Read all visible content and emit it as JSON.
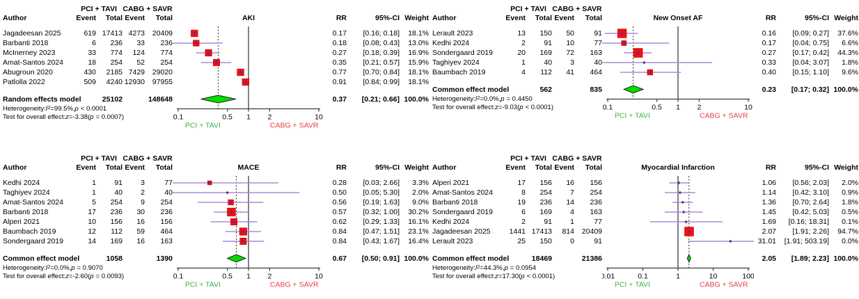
{
  "colors": {
    "square_red": "#ee1111",
    "square_border": "#bb0000",
    "ci_line_purple": "#a98cd5",
    "point_marker_purple": "#5c2d91",
    "diamond_green": "#00dd00",
    "diamond_border": "#222222",
    "axis_gray": "#3f3f3f",
    "ref_line": "#303030",
    "dashed_line": "#222222",
    "favors_left_green": "#3bb34a",
    "favors_right_red": "#e94040"
  },
  "labels": {
    "heterogeneity_prefix": "Heterogeneity: ",
    "i_symbol": "I",
    "sup2": "2",
    "equals": " = ",
    "comma_sep": ", ",
    "p_symbol": "p",
    "test_prefix": "Test for overall effect: ",
    "z_symbol": "z",
    "open_paren": " (",
    "close_paren": ")"
  },
  "chart_data": [
    {
      "type": "forest_plot",
      "title": "AKI",
      "group1_header": "PCI + TAVI",
      "group2_header": "CABG + SAVR",
      "col_headers": {
        "author": "Author",
        "event1": "Event",
        "total1": "Total",
        "event2": "Event",
        "total2": "Total",
        "rr": "RR",
        "ci": "95%-CI",
        "weight": "Weight"
      },
      "x_ticks": [
        0.1,
        0.5,
        1,
        2,
        10
      ],
      "x_tick_labels": [
        "0.1",
        "0.5",
        "1",
        "2",
        "10"
      ],
      "x_log10_range": [
        -1,
        1
      ],
      "favors_left_label": "PCI + TAVI",
      "favors_right_label": "CABG + SAVR",
      "studies": [
        {
          "author": "Jagadeesan 2025",
          "event1": "619",
          "total1": "17413",
          "event2": "4273",
          "total2": "20409",
          "rr": 0.17,
          "ci_low": 0.16,
          "ci_high": 0.18,
          "rr_text": "0.17",
          "ci_text": "[0.16; 0.18]",
          "weight_pct": 18.1,
          "weight_text": "18.1%"
        },
        {
          "author": "Barbanti 2018",
          "event1": "6",
          "total1": "236",
          "event2": "33",
          "total2": "236",
          "rr": 0.18,
          "ci_low": 0.08,
          "ci_high": 0.43,
          "rr_text": "0.18",
          "ci_text": "[0.08; 0.43]",
          "weight_pct": 13.0,
          "weight_text": "13.0%"
        },
        {
          "author": "McInerney 2023",
          "event1": "33",
          "total1": "774",
          "event2": "124",
          "total2": "774",
          "rr": 0.27,
          "ci_low": 0.18,
          "ci_high": 0.39,
          "rr_text": "0.27",
          "ci_text": "[0.18; 0.39]",
          "weight_pct": 16.9,
          "weight_text": "16.9%"
        },
        {
          "author": "Amat-Santos 2024",
          "event1": "18",
          "total1": "254",
          "event2": "52",
          "total2": "254",
          "rr": 0.35,
          "ci_low": 0.21,
          "ci_high": 0.57,
          "rr_text": "0.35",
          "ci_text": "[0.21; 0.57]",
          "weight_pct": 15.9,
          "weight_text": "15.9%"
        },
        {
          "author": "Abugroun 2020",
          "event1": "430",
          "total1": "2185",
          "event2": "7429",
          "total2": "29020",
          "rr": 0.77,
          "ci_low": 0.7,
          "ci_high": 0.84,
          "rr_text": "0.77",
          "ci_text": "[0.70; 0.84]",
          "weight_pct": 18.1,
          "weight_text": "18.1%"
        },
        {
          "author": "Patlolla 2022",
          "event1": "509",
          "total1": "4240",
          "event2": "12930",
          "total2": "97955",
          "rr": 0.91,
          "ci_low": 0.84,
          "ci_high": 0.99,
          "rr_text": "0.91",
          "ci_text": "[0.84; 0.99]",
          "weight_pct": 18.1,
          "weight_text": "18.1%"
        }
      ],
      "model": {
        "label": "Random effects model",
        "total1": "25102",
        "total2": "148648",
        "rr": 0.37,
        "ci_low": 0.21,
        "ci_high": 0.66,
        "rr_text": "0.37",
        "ci_text": "[0.21; 0.66]",
        "weight_text": "100.0%"
      },
      "heterogeneity": {
        "i2": "99.5%",
        "p": "< 0.0001"
      },
      "overall_test": {
        "z": "-3.38",
        "p": "= 0.0007"
      }
    },
    {
      "type": "forest_plot",
      "title": "New Onset AF",
      "group1_header": "PCI + TAVI",
      "group2_header": "CABG + SAVR",
      "col_headers": {
        "author": "Author",
        "event1": "Event",
        "total1": "Total",
        "event2": "Event",
        "total2": "Total",
        "rr": "RR",
        "ci": "95%-CI",
        "weight": "Weight"
      },
      "x_ticks": [
        0.1,
        0.5,
        1,
        2,
        10
      ],
      "x_tick_labels": [
        "0.1",
        "0.5",
        "1",
        "2",
        "10"
      ],
      "x_log10_range": [
        -1,
        1
      ],
      "favors_left_label": "PCI + TAVI",
      "favors_right_label": "CABG + SAVR",
      "studies": [
        {
          "author": "Lerault 2023",
          "event1": "13",
          "total1": "150",
          "event2": "50",
          "total2": "91",
          "rr": 0.16,
          "ci_low": 0.09,
          "ci_high": 0.27,
          "rr_text": "0.16",
          "ci_text": "[0.09; 0.27]",
          "weight_pct": 37.6,
          "weight_text": "37.6%"
        },
        {
          "author": "Kedhi 2024",
          "event1": "2",
          "total1": "91",
          "event2": "10",
          "total2": "77",
          "rr": 0.17,
          "ci_low": 0.04,
          "ci_high": 0.75,
          "rr_text": "0.17",
          "ci_text": "[0.04; 0.75]",
          "weight_pct": 6.6,
          "weight_text": "6.6%"
        },
        {
          "author": "Sondergaard 2019",
          "event1": "20",
          "total1": "169",
          "event2": "72",
          "total2": "163",
          "rr": 0.27,
          "ci_low": 0.17,
          "ci_high": 0.42,
          "rr_text": "0.27",
          "ci_text": "[0.17; 0.42]",
          "weight_pct": 44.3,
          "weight_text": "44.3%"
        },
        {
          "author": "Taghiyev 2024",
          "event1": "1",
          "total1": "40",
          "event2": "3",
          "total2": "40",
          "rr": 0.33,
          "ci_low": 0.04,
          "ci_high": 3.07,
          "rr_text": "0.33",
          "ci_text": "[0.04; 3.07]",
          "weight_pct": 1.8,
          "weight_text": "1.8%"
        },
        {
          "author": "Baumbach 2019",
          "event1": "4",
          "total1": "112",
          "event2": "41",
          "total2": "464",
          "rr": 0.4,
          "ci_low": 0.15,
          "ci_high": 1.1,
          "rr_text": "0.40",
          "ci_text": "[0.15; 1.10]",
          "weight_pct": 9.6,
          "weight_text": "9.6%"
        }
      ],
      "model": {
        "label": "Common effect model",
        "total1": "562",
        "total2": "835",
        "rr": 0.23,
        "ci_low": 0.17,
        "ci_high": 0.32,
        "rr_text": "0.23",
        "ci_text": "[0.17; 0.32]",
        "weight_text": "100.0%"
      },
      "heterogeneity": {
        "i2": "0.0%",
        "p": "= 0.4450"
      },
      "overall_test": {
        "z": "-9.03",
        "p": "< 0.0001"
      }
    },
    {
      "type": "forest_plot",
      "title": "MACE",
      "group1_header": "PCI + TAVI",
      "group2_header": "CABG + SAVR",
      "col_headers": {
        "author": "Author",
        "event1": "Event",
        "total1": "Total",
        "event2": "Event",
        "total2": "Total",
        "rr": "RR",
        "ci": "95%-CI",
        "weight": "Weight"
      },
      "x_ticks": [
        0.1,
        0.5,
        1,
        2,
        10
      ],
      "x_tick_labels": [
        "0.1",
        "0.5",
        "1",
        "2",
        "10"
      ],
      "x_log10_range": [
        -1,
        1
      ],
      "favors_left_label": "PCI + TAVI",
      "favors_right_label": "CABG + SAVR",
      "studies": [
        {
          "author": "Kedhi 2024",
          "event1": "1",
          "total1": "91",
          "event2": "3",
          "total2": "77",
          "rr": 0.28,
          "ci_low": 0.03,
          "ci_high": 2.66,
          "rr_text": "0.28",
          "ci_text": "[0.03; 2.66]",
          "weight_pct": 3.3,
          "weight_text": "3.3%"
        },
        {
          "author": "Taghiyev 2024",
          "event1": "1",
          "total1": "40",
          "event2": "2",
          "total2": "40",
          "rr": 0.5,
          "ci_low": 0.05,
          "ci_high": 5.3,
          "rr_text": "0.50",
          "ci_text": "[0.05; 5.30]",
          "weight_pct": 2.0,
          "weight_text": "2.0%"
        },
        {
          "author": "Amat-Santos 2024",
          "event1": "5",
          "total1": "254",
          "event2": "9",
          "total2": "254",
          "rr": 0.56,
          "ci_low": 0.19,
          "ci_high": 1.63,
          "rr_text": "0.56",
          "ci_text": "[0.19; 1.63]",
          "weight_pct": 9.0,
          "weight_text": "9.0%"
        },
        {
          "author": "Barbanti 2018",
          "event1": "17",
          "total1": "236",
          "event2": "30",
          "total2": "236",
          "rr": 0.57,
          "ci_low": 0.32,
          "ci_high": 1.0,
          "rr_text": "0.57",
          "ci_text": "[0.32; 1.00]",
          "weight_pct": 30.2,
          "weight_text": "30.2%"
        },
        {
          "author": "Alperi 2021",
          "event1": "10",
          "total1": "156",
          "event2": "16",
          "total2": "156",
          "rr": 0.62,
          "ci_low": 0.29,
          "ci_high": 1.33,
          "rr_text": "0.62",
          "ci_text": "[0.29; 1.33]",
          "weight_pct": 16.1,
          "weight_text": "16.1%"
        },
        {
          "author": "Baumbach 2019",
          "event1": "12",
          "total1": "112",
          "event2": "59",
          "total2": "464",
          "rr": 0.84,
          "ci_low": 0.47,
          "ci_high": 1.51,
          "rr_text": "0.84",
          "ci_text": "[0.47; 1.51]",
          "weight_pct": 23.1,
          "weight_text": "23.1%"
        },
        {
          "author": "Sondergaard 2019",
          "event1": "14",
          "total1": "169",
          "event2": "16",
          "total2": "163",
          "rr": 0.84,
          "ci_low": 0.43,
          "ci_high": 1.67,
          "rr_text": "0.84",
          "ci_text": "[0.43; 1.67]",
          "weight_pct": 16.4,
          "weight_text": "16.4%"
        }
      ],
      "model": {
        "label": "Common effect model",
        "total1": "1058",
        "total2": "1390",
        "rr": 0.67,
        "ci_low": 0.5,
        "ci_high": 0.91,
        "rr_text": "0.67",
        "ci_text": "[0.50; 0.91]",
        "weight_text": "100.0%"
      },
      "heterogeneity": {
        "i2": "0.0%",
        "p": "= 0.9070"
      },
      "overall_test": {
        "z": "-2.60",
        "p": "= 0.0093"
      }
    },
    {
      "type": "forest_plot",
      "title": "Myocardial Infarction",
      "group1_header": "PCI + TAVI",
      "group2_header": "CABG + SAVR",
      "col_headers": {
        "author": "Author",
        "event1": "Event",
        "total1": "Total",
        "event2": "Event",
        "total2": "Total",
        "rr": "RR",
        "ci": "95%-CI",
        "weight": "Weight"
      },
      "x_ticks": [
        0.01,
        0.1,
        1,
        10,
        100
      ],
      "x_tick_labels": [
        "0.01",
        "0.1",
        "1",
        "10",
        "100"
      ],
      "x_log10_range": [
        -2,
        2
      ],
      "favors_left_label": "PCI + TAVI",
      "favors_right_label": "CABG + SAVR",
      "studies": [
        {
          "author": "Alperi 2021",
          "event1": "17",
          "total1": "156",
          "event2": "16",
          "total2": "156",
          "rr": 1.06,
          "ci_low": 0.56,
          "ci_high": 2.03,
          "rr_text": "1.06",
          "ci_text": "[0.56; 2.03]",
          "weight_pct": 2.0,
          "weight_text": "2.0%"
        },
        {
          "author": "Amat-Santos 2024",
          "event1": "8",
          "total1": "254",
          "event2": "7",
          "total2": "254",
          "rr": 1.14,
          "ci_low": 0.42,
          "ci_high": 3.1,
          "rr_text": "1.14",
          "ci_text": "[0.42; 3.10]",
          "weight_pct": 0.9,
          "weight_text": "0.9%"
        },
        {
          "author": "Barbanti 2018",
          "event1": "19",
          "total1": "236",
          "event2": "14",
          "total2": "236",
          "rr": 1.36,
          "ci_low": 0.7,
          "ci_high": 2.64,
          "rr_text": "1.36",
          "ci_text": "[0.70; 2.64]",
          "weight_pct": 1.8,
          "weight_text": "1.8%"
        },
        {
          "author": "Sondergaard 2019",
          "event1": "6",
          "total1": "169",
          "event2": "4",
          "total2": "163",
          "rr": 1.45,
          "ci_low": 0.42,
          "ci_high": 5.03,
          "rr_text": "1.45",
          "ci_text": "[0.42; 5.03]",
          "weight_pct": 0.5,
          "weight_text": "0.5%"
        },
        {
          "author": "Kedhi 2024",
          "event1": "2",
          "total1": "91",
          "event2": "1",
          "total2": "77",
          "rr": 1.69,
          "ci_low": 0.16,
          "ci_high": 18.31,
          "rr_text": "1.69",
          "ci_text": "[0.16; 18.31]",
          "weight_pct": 0.1,
          "weight_text": "0.1%"
        },
        {
          "author": "Jagadeesan 2025",
          "event1": "1441",
          "total1": "17413",
          "event2": "814",
          "total2": "20409",
          "rr": 2.07,
          "ci_low": 1.91,
          "ci_high": 2.26,
          "rr_text": "2.07",
          "ci_text": "[1.91; 2.26]",
          "weight_pct": 94.7,
          "weight_text": "94.7%"
        },
        {
          "author": "Lerault 2023",
          "event1": "25",
          "total1": "150",
          "event2": "0",
          "total2": "91",
          "rr": 31.01,
          "ci_low": 1.91,
          "ci_high": 503.19,
          "rr_text": "31.01",
          "ci_text": "[1.91; 503.19]",
          "weight_pct": 0.0,
          "weight_text": "0.0%"
        }
      ],
      "model": {
        "label": "Common effect model",
        "total1": "18469",
        "total2": "21386",
        "rr": 2.05,
        "ci_low": 1.89,
        "ci_high": 2.23,
        "rr_text": "2.05",
        "ci_text": "[1.89; 2.23]",
        "weight_text": "100.0%"
      },
      "heterogeneity": {
        "i2": "44.3%",
        "p": "= 0.0954"
      },
      "overall_test": {
        "z": "17.30",
        "p": "< 0.0001"
      }
    }
  ]
}
